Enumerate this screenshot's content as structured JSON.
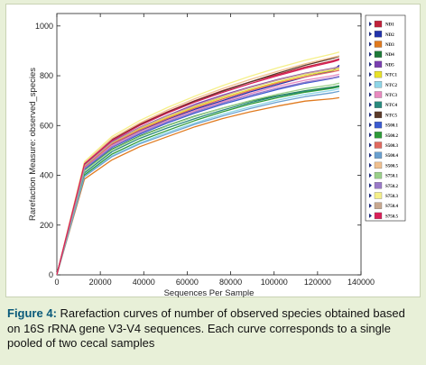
{
  "chart_data": {
    "type": "line",
    "title": "",
    "xlabel": "Sequences Per Sample",
    "ylabel": "Rarefaction Measure: observed_species",
    "xlim": [
      0,
      140000
    ],
    "ylim": [
      0,
      1050
    ],
    "x_ticks": [
      0,
      20000,
      40000,
      60000,
      80000,
      100000,
      120000,
      140000
    ],
    "y_ticks": [
      0,
      200,
      400,
      600,
      800,
      1000
    ],
    "grid": false,
    "legend_position": "right",
    "x": [
      10,
      12700,
      25400,
      38100,
      50800,
      63500,
      76200,
      88900,
      101600,
      114300,
      127000,
      130000
    ],
    "series": [
      {
        "name": "ND1",
        "color": "#c0213b",
        "values": [
          1,
          448,
          545,
          605,
          655,
          700,
          740,
          775,
          805,
          835,
          860,
          868
        ]
      },
      {
        "name": "ND2",
        "color": "#2233aa",
        "values": [
          1,
          432,
          522,
          578,
          625,
          665,
          700,
          735,
          765,
          795,
          820,
          842
        ]
      },
      {
        "name": "ND3",
        "color": "#e07a1f",
        "values": [
          1,
          385,
          462,
          515,
          555,
          595,
          628,
          655,
          678,
          698,
          708,
          712
        ]
      },
      {
        "name": "ND4",
        "color": "#1e7a3a",
        "values": [
          1,
          420,
          505,
          558,
          600,
          638,
          670,
          698,
          720,
          740,
          755,
          760
        ]
      },
      {
        "name": "ND5",
        "color": "#7a3fb0",
        "values": [
          1,
          440,
          535,
          592,
          640,
          685,
          722,
          755,
          785,
          810,
          830,
          836
        ]
      },
      {
        "name": "NTC1",
        "color": "#e8e22a",
        "values": [
          1,
          436,
          528,
          585,
          632,
          675,
          712,
          745,
          775,
          802,
          822,
          828
        ]
      },
      {
        "name": "NTC2",
        "color": "#8fd6e8",
        "values": [
          1,
          398,
          478,
          530,
          572,
          610,
          645,
          675,
          702,
          725,
          742,
          748
        ]
      },
      {
        "name": "NTC3",
        "color": "#e98ac0",
        "values": [
          1,
          430,
          520,
          575,
          620,
          660,
          695,
          728,
          758,
          782,
          800,
          806
        ]
      },
      {
        "name": "NTC4",
        "color": "#2a8a7e",
        "values": [
          1,
          410,
          495,
          548,
          590,
          628,
          662,
          692,
          718,
          738,
          752,
          758
        ]
      },
      {
        "name": "NTC5",
        "color": "#5a3a2a",
        "values": [
          1,
          445,
          542,
          602,
          652,
          698,
          738,
          775,
          810,
          842,
          870,
          878
        ]
      },
      {
        "name": "S500.1",
        "color": "#3b5bd0",
        "values": [
          1,
          425,
          512,
          565,
          610,
          650,
          685,
          716,
          745,
          770,
          790,
          796
        ]
      },
      {
        "name": "S500.2",
        "color": "#2e9a3a",
        "values": [
          1,
          402,
          485,
          538,
          580,
          620,
          655,
          686,
          712,
          734,
          750,
          756
        ]
      },
      {
        "name": "S500.3",
        "color": "#e06a60",
        "values": [
          1,
          434,
          526,
          582,
          628,
          670,
          706,
          740,
          770,
          796,
          816,
          822
        ]
      },
      {
        "name": "S500.4",
        "color": "#6aa0d0",
        "values": [
          1,
          395,
          475,
          526,
          566,
          605,
          638,
          668,
          694,
          716,
          732,
          738
        ]
      },
      {
        "name": "S500.5",
        "color": "#f0c090",
        "values": [
          1,
          450,
          548,
          610,
          662,
          708,
          748,
          785,
          818,
          848,
          874,
          880
        ]
      },
      {
        "name": "S750.1",
        "color": "#9ad08a",
        "values": [
          1,
          418,
          502,
          555,
          598,
          636,
          670,
          700,
          726,
          748,
          764,
          770
        ]
      },
      {
        "name": "S750.2",
        "color": "#9a7ac8",
        "values": [
          1,
          428,
          515,
          570,
          615,
          655,
          690,
          722,
          750,
          774,
          792,
          798
        ]
      },
      {
        "name": "S750.3",
        "color": "#f5f08a",
        "values": [
          1,
          455,
          556,
          620,
          672,
          718,
          760,
          798,
          832,
          862,
          888,
          895
        ]
      },
      {
        "name": "S750.4",
        "color": "#c8a890",
        "values": [
          1,
          438,
          532,
          590,
          638,
          680,
          718,
          752,
          782,
          808,
          828,
          834
        ]
      },
      {
        "name": "S750.5",
        "color": "#d8205a",
        "values": [
          1,
          446,
          540,
          600,
          650,
          694,
          733,
          768,
          800,
          830,
          856,
          864
        ]
      }
    ]
  },
  "caption": {
    "label": "Figure 4:",
    "text": " Rarefaction curves of number of observed species obtained based on 16S rRNA gene V3-V4 sequences. Each curve corresponds to a single pooled of two cecal samples"
  },
  "colors": {
    "background": "#e8f0d8",
    "panel": "#ffffff",
    "caption_label": "#0a5a7a"
  }
}
